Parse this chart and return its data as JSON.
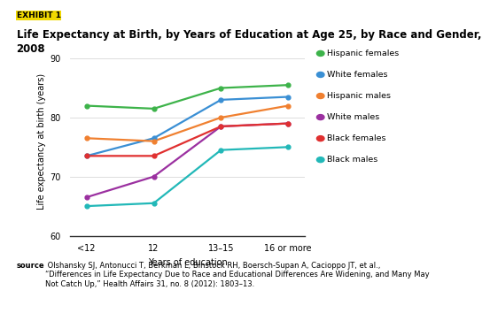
{
  "title_line1": "Life Expectancy at Birth, by Years of Education at Age 25, by Race and Gender,",
  "title_line2": "2008",
  "exhibit_label": "EXHIBIT 1",
  "xlabel": "Years of education",
  "ylabel": "Life expectancy at birth (years)",
  "x_labels": [
    "<12",
    "12",
    "13–15",
    "16 or more"
  ],
  "x_positions": [
    0,
    1,
    2,
    3
  ],
  "ylim": [
    60,
    92
  ],
  "yticks": [
    60,
    70,
    80,
    90
  ],
  "series": [
    {
      "label": "Hispanic females",
      "color": "#3db34a",
      "values": [
        82.0,
        81.5,
        85.0,
        85.5
      ]
    },
    {
      "label": "White females",
      "color": "#3a8fd4",
      "values": [
        73.5,
        76.5,
        83.0,
        83.5
      ]
    },
    {
      "label": "Hispanic males",
      "color": "#f08030",
      "values": [
        76.5,
        76.0,
        80.0,
        82.0
      ]
    },
    {
      "label": "White males",
      "color": "#9b30a0",
      "values": [
        66.5,
        70.0,
        78.5,
        79.0
      ]
    },
    {
      "label": "Black females",
      "color": "#e03030",
      "values": [
        73.5,
        73.5,
        78.5,
        79.0
      ]
    },
    {
      "label": "Black males",
      "color": "#22b8b8",
      "values": [
        65.0,
        65.5,
        74.5,
        75.0
      ]
    }
  ],
  "source_bold": "source",
  "source_text": " Olshansky SJ, Antonucci T, Berkman L, Binstock RH, Boersch-Supan A, Cacioppo JT, et al.,\n“Differences in Life Expectancy Due to Race and Educational Differences Are Widening, and Many May\nNot Catch Up,” Health Affairs 31, no. 8 (2012): 1803–13.",
  "bg_color": "#ffffff",
  "exhibit_bg": "#f0d800",
  "title_fontsize": 8.5,
  "axis_fontsize": 7,
  "tick_fontsize": 7,
  "legend_fontsize": 6.8,
  "source_fontsize": 6
}
